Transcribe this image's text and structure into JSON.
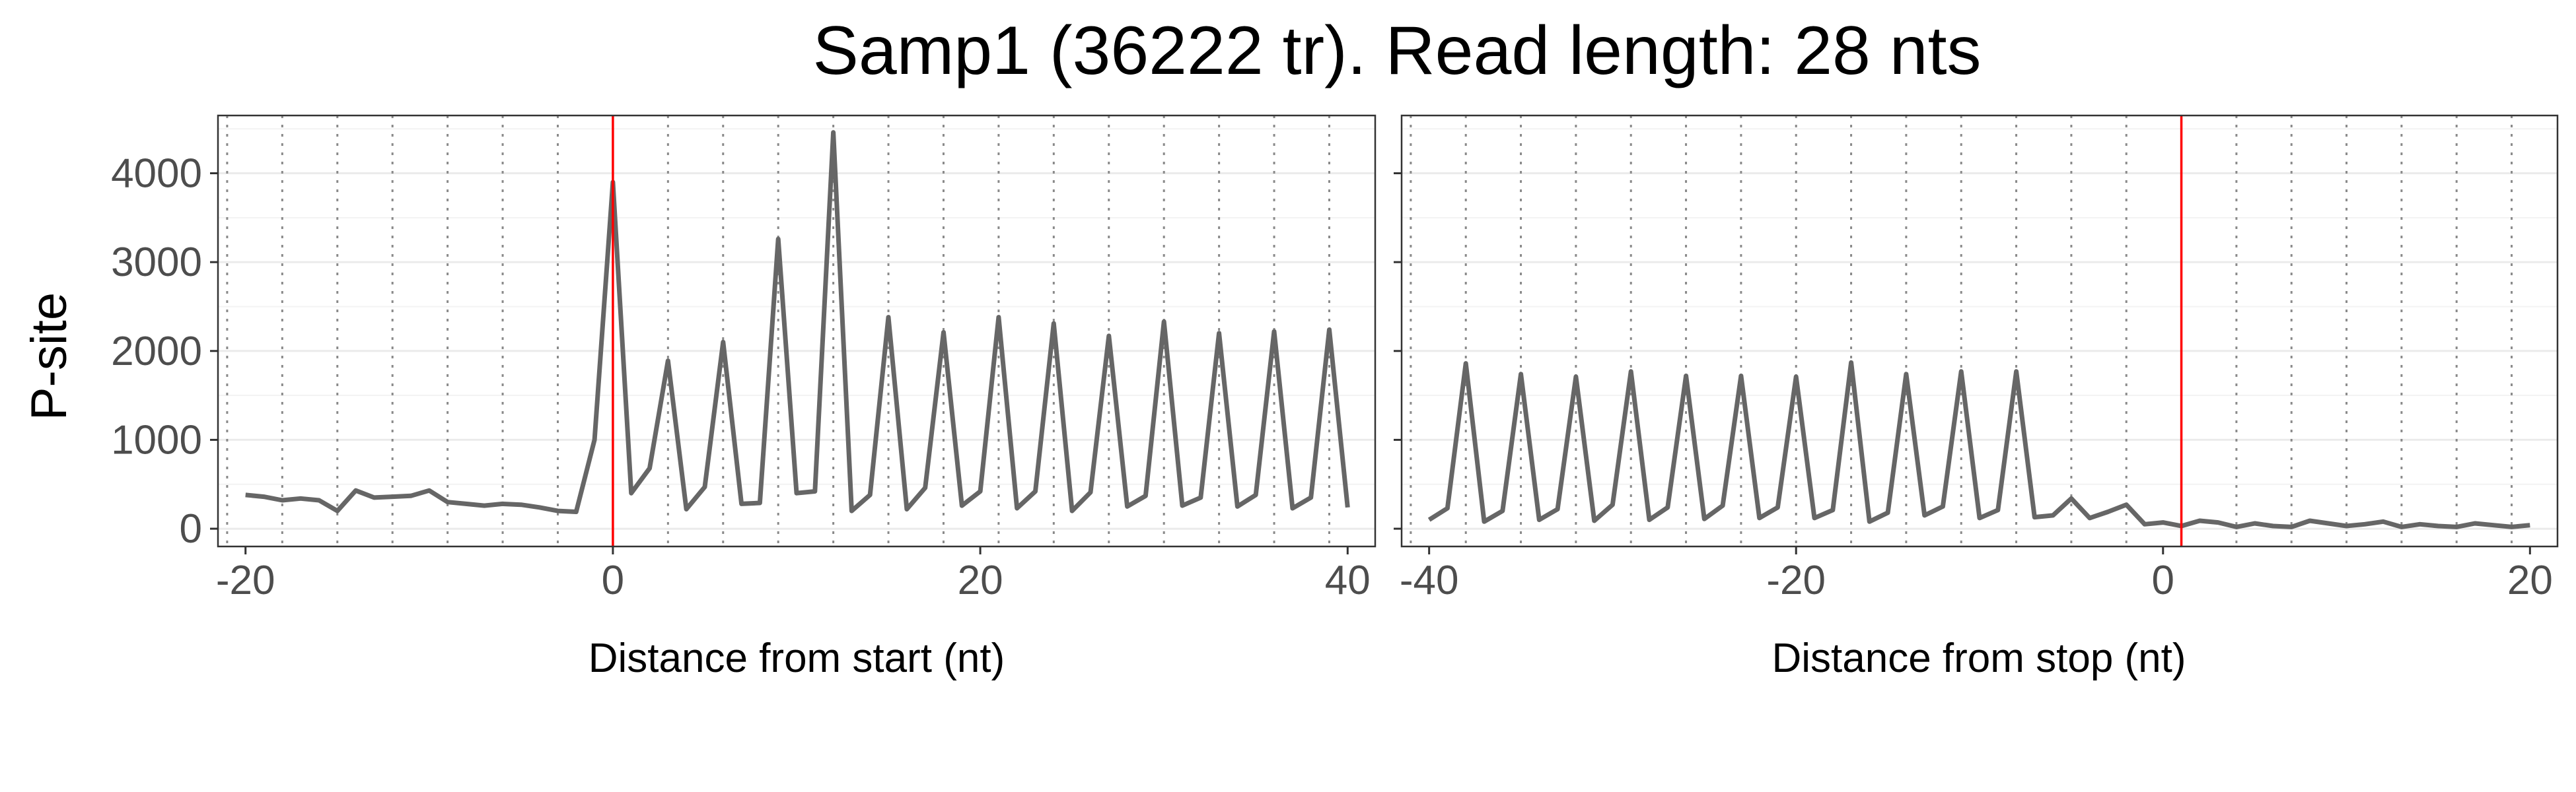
{
  "title": "Samp1 (36222 tr). Read length: 28 nts",
  "ylabel": "P-site",
  "chart_data": [
    {
      "type": "line",
      "panel": "start",
      "xlabel": "Distance from start (nt)",
      "ylabel": "P-site",
      "xlim": [
        -21.5,
        41.5
      ],
      "ylim": [
        -200,
        4650
      ],
      "x_ticks": [
        -20,
        0,
        20,
        40
      ],
      "y_ticks": [
        0,
        1000,
        2000,
        3000,
        4000
      ],
      "reference_x": 0,
      "reference_color": "#ff0000",
      "line_color": "#666666",
      "grid": true,
      "x": [
        -20,
        -19,
        -18,
        -17,
        -16,
        -15,
        -14,
        -13,
        -12,
        -11,
        -10,
        -9,
        -8,
        -7,
        -6,
        -5,
        -4,
        -3,
        -2,
        -1,
        0,
        1,
        2,
        3,
        4,
        5,
        6,
        7,
        8,
        9,
        10,
        11,
        12,
        13,
        14,
        15,
        16,
        17,
        18,
        19,
        20,
        21,
        22,
        23,
        24,
        25,
        26,
        27,
        28,
        29,
        30,
        31,
        32,
        33,
        34,
        35,
        36,
        37,
        38,
        39,
        40
      ],
      "y": [
        380,
        360,
        320,
        340,
        320,
        200,
        430,
        350,
        360,
        370,
        430,
        300,
        280,
        260,
        280,
        270,
        240,
        200,
        190,
        1000,
        3900,
        400,
        680,
        1890,
        220,
        470,
        2100,
        280,
        290,
        3260,
        400,
        420,
        4460,
        200,
        380,
        2380,
        220,
        460,
        2210,
        260,
        420,
        2380,
        230,
        420,
        2310,
        200,
        410,
        2170,
        250,
        370,
        2330,
        260,
        350,
        2200,
        250,
        380,
        2220,
        230,
        350,
        2240,
        240
      ]
    },
    {
      "type": "line",
      "panel": "stop",
      "xlabel": "Distance from stop (nt)",
      "ylabel": "",
      "xlim": [
        -41.5,
        21.5
      ],
      "ylim": [
        -200,
        4650
      ],
      "x_ticks": [
        -40,
        -20,
        0,
        20
      ],
      "y_ticks": [
        0,
        1000,
        2000,
        3000,
        4000
      ],
      "reference_x": 1,
      "reference_color": "#ff0000",
      "line_color": "#666666",
      "grid": true,
      "x": [
        -40,
        -39,
        -38,
        -37,
        -36,
        -35,
        -34,
        -33,
        -32,
        -31,
        -30,
        -29,
        -28,
        -27,
        -26,
        -25,
        -24,
        -23,
        -22,
        -21,
        -20,
        -19,
        -18,
        -17,
        -16,
        -15,
        -14,
        -13,
        -12,
        -11,
        -10,
        -9,
        -8,
        -7,
        -6,
        -5,
        -4,
        -3,
        -2,
        -1,
        0,
        1,
        2,
        3,
        4,
        5,
        6,
        7,
        8,
        9,
        10,
        11,
        12,
        13,
        14,
        15,
        16,
        17,
        18,
        19,
        20
      ],
      "y": [
        100,
        230,
        1860,
        80,
        200,
        1740,
        100,
        220,
        1710,
        90,
        270,
        1770,
        100,
        240,
        1720,
        110,
        260,
        1720,
        120,
        240,
        1710,
        120,
        210,
        1870,
        80,
        180,
        1740,
        150,
        250,
        1770,
        120,
        210,
        1770,
        130,
        150,
        340,
        120,
        190,
        270,
        50,
        70,
        30,
        90,
        70,
        20,
        60,
        30,
        20,
        90,
        60,
        30,
        50,
        80,
        20,
        50,
        30,
        20,
        60,
        40,
        20,
        40
      ]
    }
  ]
}
